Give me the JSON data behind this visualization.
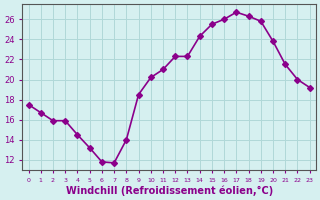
{
  "x": [
    0,
    1,
    2,
    3,
    4,
    5,
    6,
    7,
    8,
    9,
    10,
    11,
    12,
    13,
    14,
    15,
    16,
    17,
    18,
    19,
    20,
    21,
    22,
    23
  ],
  "y": [
    17.5,
    16.7,
    15.9,
    15.9,
    14.5,
    13.2,
    11.8,
    11.7,
    14.0,
    18.5,
    20.2,
    21.0,
    22.3,
    22.3,
    24.3,
    25.5,
    26.0,
    26.7,
    26.3,
    25.8,
    23.8,
    21.5,
    20.0,
    19.2
  ],
  "line_color": "#8B008B",
  "marker": "D",
  "marker_size": 3,
  "linewidth": 1.2,
  "bg_color": "#d6f0f0",
  "grid_color": "#b0d8d8",
  "tick_color": "#8B008B",
  "xlabel": "Windchill (Refroidissement éolien,°C)",
  "xlabel_fontsize": 7,
  "ylabel_ticks": [
    12,
    14,
    16,
    18,
    20,
    22,
    24,
    26
  ],
  "xtick_labels": [
    "0",
    "1",
    "2",
    "3",
    "4",
    "5",
    "6",
    "7",
    "8",
    "9",
    "10",
    "11",
    "12",
    "13",
    "14",
    "15",
    "16",
    "17",
    "18",
    "19",
    "20",
    "21",
    "22",
    "23"
  ],
  "xlim": [
    -0.5,
    23.5
  ],
  "ylim": [
    11.0,
    27.5
  ],
  "axis_color": "#555555"
}
